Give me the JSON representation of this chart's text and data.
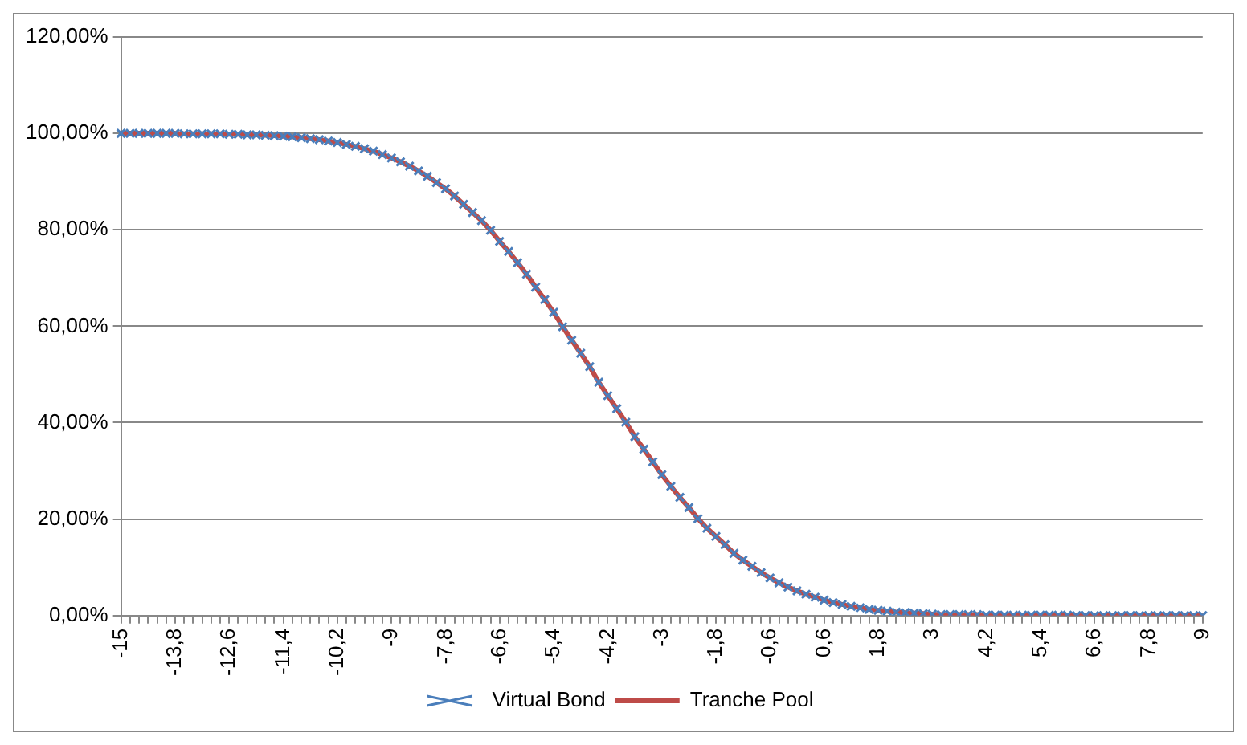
{
  "chart_data": {
    "type": "line",
    "categories": [
      "-15",
      null,
      null,
      null,
      null,
      null,
      "-13,8",
      null,
      null,
      null,
      null,
      null,
      "-12,6",
      null,
      null,
      null,
      null,
      null,
      "-11,4",
      null,
      null,
      null,
      null,
      null,
      "-10,2",
      null,
      null,
      null,
      null,
      null,
      "-9",
      null,
      null,
      null,
      null,
      null,
      "-7,8",
      null,
      null,
      null,
      null,
      null,
      "-6,6",
      null,
      null,
      null,
      null,
      null,
      "-5,4",
      null,
      null,
      null,
      null,
      null,
      "-4,2",
      null,
      null,
      null,
      null,
      null,
      "-3",
      null,
      null,
      null,
      null,
      null,
      "-1,8",
      null,
      null,
      null,
      null,
      null,
      "-0,6",
      null,
      null,
      null,
      null,
      null,
      "0,6",
      null,
      null,
      null,
      null,
      null,
      "1,8",
      null,
      null,
      null,
      null,
      null,
      "3",
      null,
      null,
      null,
      null,
      null,
      "4,2",
      null,
      null,
      null,
      null,
      null,
      "5,4",
      null,
      null,
      null,
      null,
      null,
      "6,6",
      null,
      null,
      null,
      null,
      null,
      "7,8",
      null,
      null,
      null,
      null,
      null,
      "9"
    ],
    "series": [
      {
        "name": "Virtual Bond",
        "type": "scatter",
        "color": "#4a7ebb",
        "marker": "cross",
        "values": [
          100,
          100,
          100,
          100,
          100,
          100,
          100,
          99.9,
          99.9,
          99.9,
          99.9,
          99.9,
          99.8,
          99.8,
          99.7,
          99.7,
          99.6,
          99.5,
          99.4,
          99.3,
          99.1,
          98.9,
          98.7,
          98.4,
          98.1,
          97.7,
          97.3,
          96.8,
          96.3,
          95.6,
          94.9,
          94.1,
          93.2,
          92.2,
          91.1,
          89.8,
          88.5,
          87,
          85.3,
          83.6,
          81.9,
          79.9,
          77.6,
          75.5,
          73.2,
          70.8,
          68.1,
          65.5,
          62.9,
          59.9,
          57.1,
          54.4,
          51.6,
          48.4,
          45.6,
          42.9,
          40.1,
          37.1,
          34.5,
          31.9,
          29.2,
          26.8,
          24.5,
          22.4,
          20.1,
          18.1,
          16.4,
          14.7,
          12.9,
          11.5,
          10.2,
          8.9,
          7.8,
          6.8,
          5.9,
          5.1,
          4.4,
          3.8,
          3.2,
          2.7,
          2.3,
          1.9,
          1.6,
          1.3,
          1.1,
          0.9,
          0.7,
          0.6,
          0.5,
          0.4,
          0.3,
          0.2,
          0.2,
          0.2,
          0.2,
          0.2,
          0.1,
          0.1,
          0.1,
          0.1,
          0.1,
          0.1,
          0.1,
          0.1,
          0.1,
          0.1,
          0,
          0,
          0,
          0,
          0,
          0,
          0,
          0,
          0,
          0,
          0,
          0,
          0,
          0,
          0
        ]
      },
      {
        "name": "Tranche Pool",
        "type": "line",
        "color": "#be4b48",
        "marker": "none",
        "values": [
          100,
          100,
          100,
          100,
          100,
          100,
          100,
          99.9,
          99.9,
          99.9,
          99.9,
          99.9,
          99.8,
          99.8,
          99.7,
          99.7,
          99.6,
          99.5,
          99.4,
          99.3,
          99.1,
          98.9,
          98.7,
          98.4,
          98.1,
          97.7,
          97.3,
          96.8,
          96.3,
          95.6,
          94.9,
          94.1,
          93.2,
          92.2,
          91.1,
          89.8,
          88.5,
          87,
          85.3,
          83.6,
          81.9,
          79.9,
          77.6,
          75.5,
          73.2,
          70.8,
          68.1,
          65.5,
          62.9,
          59.9,
          57.1,
          54.4,
          51.6,
          48.4,
          45.6,
          42.9,
          40.1,
          37.1,
          34.5,
          31.9,
          29.2,
          26.8,
          24.5,
          22.4,
          20.1,
          18.1,
          16.4,
          14.7,
          12.9,
          11.5,
          10.2,
          8.9,
          7.8,
          6.8,
          5.9,
          5.1,
          4.4,
          3.8,
          3.2,
          2.7,
          2.3,
          1.9,
          1.6,
          1.3,
          1.1,
          0.9,
          0.7,
          0.6,
          0.5,
          0.4,
          0.3,
          0.2,
          0.2,
          0.2,
          0.2,
          0.2,
          0.1,
          0.1,
          0.1,
          0.1,
          0.1,
          0.1,
          0.1,
          0.1,
          0.1,
          0.1,
          0,
          0,
          0,
          0,
          0,
          0,
          0,
          0,
          0,
          0,
          0,
          0,
          0,
          0,
          0
        ]
      }
    ],
    "ylim": [
      0,
      120
    ],
    "yticks": [
      {
        "value": 0,
        "label": "0,00%"
      },
      {
        "value": 20,
        "label": "20,00%"
      },
      {
        "value": 40,
        "label": "40,00%"
      },
      {
        "value": 60,
        "label": "60,00%"
      },
      {
        "value": 80,
        "label": "80,00%"
      },
      {
        "value": 100,
        "label": "100,00%"
      },
      {
        "value": 120,
        "label": "120,00%"
      }
    ],
    "grid": "y",
    "legend": "bottom"
  }
}
